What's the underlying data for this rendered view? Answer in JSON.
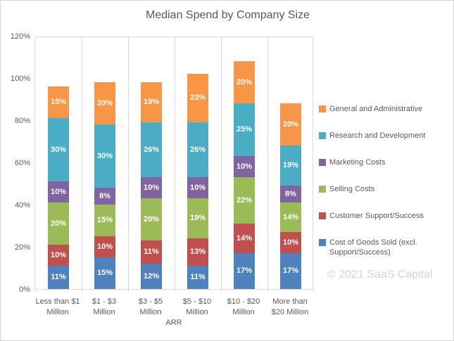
{
  "chart_data": {
    "type": "bar",
    "variant": "stacked-column",
    "title": "Median Spend by Company Size",
    "xlabel": "ARR",
    "ylabel": "",
    "ylim": [
      0,
      120
    ],
    "y_ticks": [
      {
        "value": 0,
        "label": "0%"
      },
      {
        "value": 20,
        "label": "20%"
      },
      {
        "value": 40,
        "label": "40%"
      },
      {
        "value": 60,
        "label": "60%"
      },
      {
        "value": 80,
        "label": "80%"
      },
      {
        "value": 100,
        "label": "100%"
      },
      {
        "value": 120,
        "label": "120%"
      }
    ],
    "grid": "vertical-category-separators-only",
    "legend_position": "right",
    "categories": [
      {
        "label": "Less than $1 Million",
        "lines": [
          "Less than $1",
          "Million"
        ]
      },
      {
        "label": "$1 - $3 Million",
        "lines": [
          "$1 - $3",
          "Million"
        ]
      },
      {
        "label": "$3 - $5 Million",
        "lines": [
          "$3 - $5",
          "Million"
        ]
      },
      {
        "label": "$5 - $10 Million",
        "lines": [
          "$5 - $10",
          "Million"
        ]
      },
      {
        "label": "$10 - $20 Million",
        "lines": [
          "$10 - $20",
          "Million"
        ]
      },
      {
        "label": "More than $20 Million",
        "lines": [
          "More than",
          "$20 Million"
        ]
      }
    ],
    "series": [
      {
        "name": "Cost of Goods Sold (excl. Support/Success)",
        "color": "#4F81BD",
        "values": [
          11,
          15,
          12,
          11,
          17,
          17
        ],
        "labels": [
          "11%",
          "15%",
          "12%",
          "11%",
          "17%",
          "17%"
        ]
      },
      {
        "name": "Customer Support/Success",
        "color": "#C0504D",
        "values": [
          10,
          10,
          11,
          13,
          14,
          10
        ],
        "labels": [
          "10%",
          "10%",
          "11%",
          "13%",
          "14%",
          "10%"
        ]
      },
      {
        "name": "Selling Costs",
        "color": "#9BBB59",
        "values": [
          20,
          15,
          20,
          19,
          22,
          14
        ],
        "labels": [
          "20%",
          "15%",
          "20%",
          "19%",
          "22%",
          "14%"
        ]
      },
      {
        "name": "Marketing Costs",
        "color": "#8064A2",
        "values": [
          10,
          8,
          10,
          10,
          10,
          8
        ],
        "labels": [
          "10%",
          "8%",
          "10%",
          "10%",
          "10%",
          "8%"
        ]
      },
      {
        "name": "Research and Development",
        "color": "#4BACC6",
        "values": [
          30,
          30,
          26,
          26,
          25,
          19
        ],
        "labels": [
          "30%",
          "30%",
          "26%",
          "26%",
          "25%",
          "19%"
        ]
      },
      {
        "name": "General and Administrative",
        "color": "#F79646",
        "values": [
          15,
          20,
          19,
          23,
          20,
          20
        ],
        "labels": [
          "15%",
          "20%",
          "19%",
          "23%",
          "20%",
          "20%"
        ]
      }
    ],
    "legend": [
      {
        "label": "General and Administrative",
        "color": "#F79646"
      },
      {
        "label": "Research and Development",
        "color": "#4BACC6"
      },
      {
        "label": "Marketing Costs",
        "color": "#8064A2"
      },
      {
        "label": "Selling Costs",
        "color": "#9BBB59"
      },
      {
        "label": "Customer Support/Success",
        "color": "#C0504D"
      },
      {
        "label": "Cost of Goods Sold (excl. Support/Success)",
        "color": "#4F81BD"
      }
    ],
    "watermark": "© 2021 SaaS Capital",
    "colors": {
      "text": "#595959",
      "gridline": "#D9D9D9",
      "watermark": "#D3D3CF",
      "background": "#FFFFFF",
      "border": "#D4D4D4"
    }
  }
}
